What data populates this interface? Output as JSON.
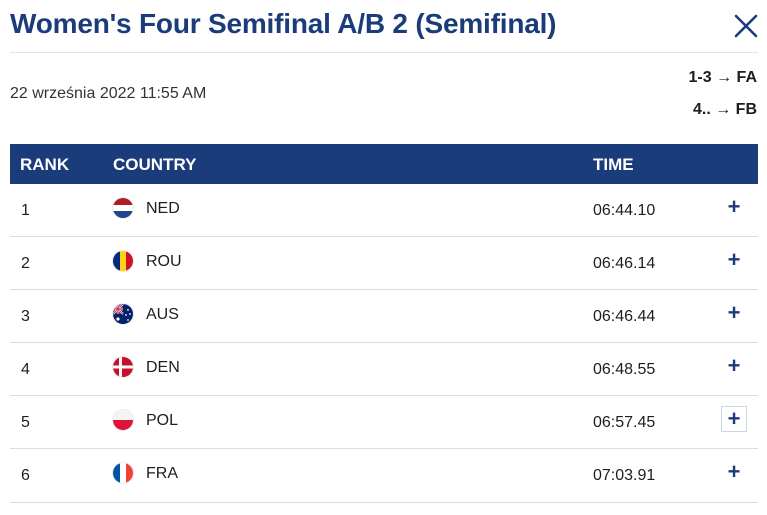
{
  "header": {
    "title": "Women's Four Semifinal A/B 2 (Semifinal)",
    "close_icon": "close-icon"
  },
  "info": {
    "datetime": "22 września 2022 11:55 AM",
    "progression": [
      "1-3 → FA",
      "4.. → FB"
    ]
  },
  "table": {
    "columns": [
      "RANK",
      "COUNTRY",
      "TIME"
    ],
    "rows": [
      {
        "rank": "1",
        "country": "NED",
        "flag": "netherlands-flag",
        "time": "06:44.10"
      },
      {
        "rank": "2",
        "country": "ROU",
        "flag": "romania-flag",
        "time": "06:46.14"
      },
      {
        "rank": "3",
        "country": "AUS",
        "flag": "australia-flag",
        "time": "06:46.44"
      },
      {
        "rank": "4",
        "country": "DEN",
        "flag": "denmark-flag",
        "time": "06:48.55"
      },
      {
        "rank": "5",
        "country": "POL",
        "flag": "poland-flag",
        "time": "06:57.45"
      },
      {
        "rank": "6",
        "country": "FRA",
        "flag": "france-flag",
        "time": "07:03.91"
      }
    ],
    "expand_icon": "+"
  },
  "colors": {
    "accent": "#1a3c7a",
    "row_divider": "#dcdcdc"
  }
}
